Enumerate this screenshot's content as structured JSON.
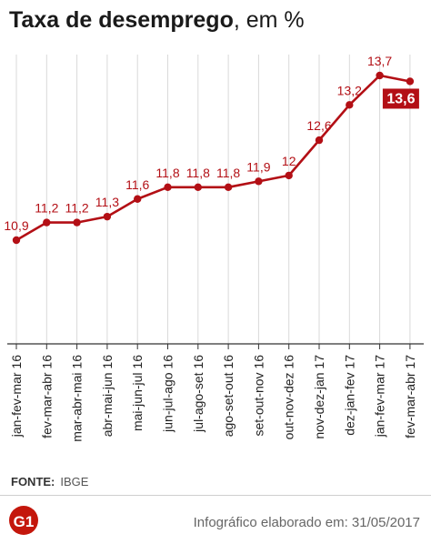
{
  "header": {
    "title_bold": "Taxa de desemprego",
    "title_rest": ", em %"
  },
  "source": {
    "label": "FONTE:",
    "value": "IBGE"
  },
  "footer": {
    "logo": "G1",
    "credit": "Infográfico elaborado em: 31/05/2017"
  },
  "colors": {
    "line": "#b30f15",
    "highlight_label_bg": "#b30f15",
    "axis": "#333333",
    "grid": "#d9d9d9"
  },
  "chart_data": {
    "type": "line",
    "title": "",
    "categories": [
      "jan-fev-mar 16",
      "fev-mar-abr 16",
      "mar-abr-mai 16",
      "abr-mai-jun 16",
      "mai-jun-jul 16",
      "jun-jul-ago 16",
      "jul-ago-set 16",
      "ago-set-out 16",
      "set-out-nov 16",
      "out-nov-dez 16",
      "nov-dez-jan 17",
      "dez-jan-fev 17",
      "jan-fev-mar 17",
      "fev-mar-abr 17"
    ],
    "values": [
      10.9,
      11.2,
      11.2,
      11.3,
      11.6,
      11.8,
      11.8,
      11.8,
      11.9,
      12.0,
      12.6,
      13.2,
      13.7,
      13.6
    ],
    "value_labels": [
      "10,9",
      "11,2",
      "11,2",
      "11,3",
      "11,6",
      "11,8",
      "11,8",
      "11,8",
      "11,9",
      "12",
      "12,6",
      "13,2",
      "13,7",
      "13,6"
    ],
    "highlight_last": true,
    "grid": "vertical",
    "xlabel": "",
    "ylabel": ""
  }
}
